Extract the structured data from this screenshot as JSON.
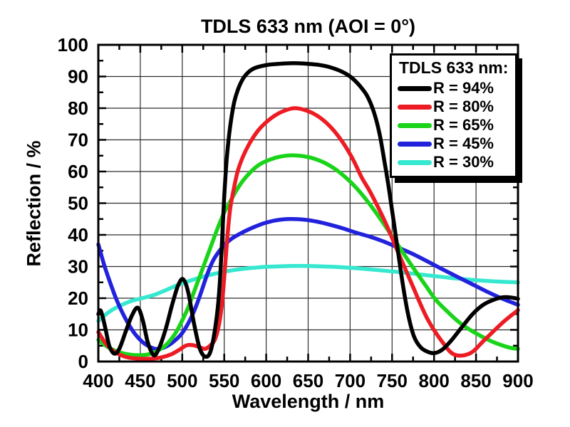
{
  "chart_data": {
    "type": "line",
    "title": "TDLS 633 nm (AOI = 0°)",
    "xlabel": "Wavelength / nm",
    "ylabel": "Reflection / %",
    "xlim": [
      400,
      900
    ],
    "ylim": [
      0,
      100
    ],
    "x_major_ticks": [
      400,
      450,
      500,
      550,
      600,
      650,
      700,
      750,
      800,
      850,
      900
    ],
    "x_minor_step": 25,
    "y_major_ticks": [
      0,
      10,
      20,
      30,
      40,
      50,
      60,
      70,
      80,
      90,
      100
    ],
    "y_minor_step": 5,
    "grid": "major-both-solid-thin",
    "frame_color": "#000000",
    "grid_color": "#2e2e2e",
    "legend": {
      "title": "TDLS 633 nm:",
      "position": "top-right"
    },
    "series": [
      {
        "key": "r30",
        "label": "R = 30%",
        "color": "#36E8CF",
        "legend_order": 5,
        "points": [
          [
            400,
            12.8
          ],
          [
            412,
            15.5
          ],
          [
            424,
            17.4
          ],
          [
            438,
            19.0
          ],
          [
            452,
            20.0
          ],
          [
            466,
            21.0
          ],
          [
            480,
            22.5
          ],
          [
            495,
            24.2
          ],
          [
            510,
            25.6
          ],
          [
            525,
            26.8
          ],
          [
            540,
            27.8
          ],
          [
            555,
            28.6
          ],
          [
            570,
            29.2
          ],
          [
            585,
            29.6
          ],
          [
            600,
            29.9
          ],
          [
            620,
            30.1
          ],
          [
            640,
            30.2
          ],
          [
            660,
            30.1
          ],
          [
            680,
            29.9
          ],
          [
            700,
            29.6
          ],
          [
            720,
            29.2
          ],
          [
            740,
            28.7
          ],
          [
            760,
            28.2
          ],
          [
            780,
            27.6
          ],
          [
            800,
            27.0
          ],
          [
            820,
            26.4
          ],
          [
            840,
            25.9
          ],
          [
            860,
            25.5
          ],
          [
            880,
            25.2
          ],
          [
            900,
            25.0
          ]
        ]
      },
      {
        "key": "r45",
        "label": "R = 45%",
        "color": "#2222DD",
        "legend_order": 4,
        "points": [
          [
            400,
            37.0
          ],
          [
            407,
            30.5
          ],
          [
            414,
            25.0
          ],
          [
            421,
            20.0
          ],
          [
            428,
            15.8
          ],
          [
            436,
            11.8
          ],
          [
            444,
            8.6
          ],
          [
            452,
            6.3
          ],
          [
            460,
            4.8
          ],
          [
            468,
            4.0
          ],
          [
            476,
            4.2
          ],
          [
            484,
            5.2
          ],
          [
            492,
            6.8
          ],
          [
            500,
            9.0
          ],
          [
            508,
            12.5
          ],
          [
            515,
            16.5
          ],
          [
            522,
            21.5
          ],
          [
            529,
            27.0
          ],
          [
            536,
            31.5
          ],
          [
            543,
            34.5
          ],
          [
            551,
            37.0
          ],
          [
            560,
            39.0
          ],
          [
            572,
            40.8
          ],
          [
            585,
            42.4
          ],
          [
            598,
            43.7
          ],
          [
            612,
            44.6
          ],
          [
            628,
            45.0
          ],
          [
            645,
            44.8
          ],
          [
            660,
            44.2
          ],
          [
            676,
            43.2
          ],
          [
            692,
            42.0
          ],
          [
            708,
            40.6
          ],
          [
            724,
            39.4
          ],
          [
            740,
            37.9
          ],
          [
            756,
            36.1
          ],
          [
            772,
            34.3
          ],
          [
            790,
            31.9
          ],
          [
            808,
            29.4
          ],
          [
            826,
            27.0
          ],
          [
            844,
            24.6
          ],
          [
            862,
            22.2
          ],
          [
            880,
            20.0
          ],
          [
            900,
            17.9
          ]
        ]
      },
      {
        "key": "r65",
        "label": "R = 65%",
        "color": "#1AD41A",
        "legend_order": 3,
        "points": [
          [
            400,
            6.8
          ],
          [
            410,
            4.8
          ],
          [
            422,
            3.2
          ],
          [
            435,
            2.3
          ],
          [
            448,
            2.0
          ],
          [
            460,
            2.3
          ],
          [
            472,
            3.6
          ],
          [
            482,
            5.6
          ],
          [
            492,
            9.0
          ],
          [
            500,
            13.0
          ],
          [
            507,
            17.0
          ],
          [
            514,
            22.0
          ],
          [
            521,
            27.0
          ],
          [
            528,
            32.0
          ],
          [
            535,
            37.0
          ],
          [
            542,
            42.0
          ],
          [
            549,
            46.5
          ],
          [
            556,
            50.0
          ],
          [
            564,
            53.8
          ],
          [
            572,
            57.0
          ],
          [
            582,
            60.0
          ],
          [
            592,
            62.2
          ],
          [
            603,
            63.6
          ],
          [
            615,
            64.6
          ],
          [
            630,
            65.1
          ],
          [
            645,
            64.8
          ],
          [
            658,
            64.0
          ],
          [
            670,
            62.7
          ],
          [
            682,
            60.8
          ],
          [
            694,
            58.3
          ],
          [
            706,
            55.2
          ],
          [
            718,
            51.5
          ],
          [
            730,
            47.3
          ],
          [
            742,
            42.7
          ],
          [
            754,
            38.0
          ],
          [
            766,
            33.2
          ],
          [
            778,
            28.5
          ],
          [
            790,
            24.0
          ],
          [
            802,
            19.5
          ],
          [
            815,
            16.0
          ],
          [
            828,
            12.8
          ],
          [
            840,
            10.5
          ],
          [
            852,
            8.6
          ],
          [
            865,
            6.8
          ],
          [
            878,
            5.4
          ],
          [
            890,
            4.4
          ],
          [
            900,
            4.0
          ]
        ]
      },
      {
        "key": "r80",
        "label": "R = 80%",
        "color": "#ED1C24",
        "legend_order": 2,
        "points": [
          [
            400,
            9.3
          ],
          [
            408,
            6.0
          ],
          [
            417,
            3.5
          ],
          [
            427,
            2.0
          ],
          [
            437,
            1.2
          ],
          [
            450,
            0.9
          ],
          [
            463,
            0.9
          ],
          [
            475,
            1.3
          ],
          [
            487,
            2.3
          ],
          [
            497,
            3.8
          ],
          [
            505,
            5.1
          ],
          [
            512,
            5.2
          ],
          [
            520,
            4.6
          ],
          [
            527,
            4.0
          ],
          [
            533,
            5.0
          ],
          [
            539,
            7.0
          ],
          [
            544,
            12.0
          ],
          [
            548,
            20.0
          ],
          [
            551,
            30.0
          ],
          [
            554,
            40.0
          ],
          [
            557,
            48.0
          ],
          [
            561,
            54.0
          ],
          [
            566,
            60.0
          ],
          [
            572,
            64.5
          ],
          [
            580,
            68.8
          ],
          [
            590,
            72.8
          ],
          [
            601,
            75.8
          ],
          [
            613,
            78.1
          ],
          [
            625,
            79.5
          ],
          [
            634,
            80.0
          ],
          [
            645,
            79.5
          ],
          [
            657,
            78.2
          ],
          [
            669,
            76.0
          ],
          [
            681,
            72.8
          ],
          [
            693,
            68.5
          ],
          [
            704,
            63.5
          ],
          [
            714,
            58.0
          ],
          [
            724,
            53.5
          ],
          [
            741,
            44.5
          ],
          [
            758,
            34.0
          ],
          [
            775,
            23.5
          ],
          [
            792,
            13.5
          ],
          [
            809,
            6.5
          ],
          [
            824,
            2.2
          ],
          [
            843,
            2.6
          ],
          [
            860,
            6.8
          ],
          [
            883,
            12.6
          ],
          [
            900,
            16.2
          ]
        ]
      },
      {
        "key": "r94",
        "label": "R = 94%",
        "color": "#000000",
        "legend_order": 1,
        "points": [
          [
            400,
            15.0
          ],
          [
            403,
            16.0
          ],
          [
            408,
            11.0
          ],
          [
            413,
            5.0
          ],
          [
            419,
            2.5
          ],
          [
            425,
            4.0
          ],
          [
            432,
            9.0
          ],
          [
            440,
            14.5
          ],
          [
            447,
            17.0
          ],
          [
            453,
            13.0
          ],
          [
            459,
            6.0
          ],
          [
            466,
            2.0
          ],
          [
            472,
            4.0
          ],
          [
            480,
            10.0
          ],
          [
            488,
            18.0
          ],
          [
            495,
            24.0
          ],
          [
            501,
            26.0
          ],
          [
            507,
            22.0
          ],
          [
            514,
            12.0
          ],
          [
            521,
            4.0
          ],
          [
            528,
            1.5
          ],
          [
            534,
            3.5
          ],
          [
            540,
            12.0
          ],
          [
            544,
            22.0
          ],
          [
            547,
            36.0
          ],
          [
            550,
            52.0
          ],
          [
            553,
            64.0
          ],
          [
            557,
            74.0
          ],
          [
            562,
            82.0
          ],
          [
            568,
            87.0
          ],
          [
            575,
            90.3
          ],
          [
            585,
            92.5
          ],
          [
            600,
            93.6
          ],
          [
            615,
            94.0
          ],
          [
            633,
            94.2
          ],
          [
            650,
            94.0
          ],
          [
            662,
            93.7
          ],
          [
            675,
            93.0
          ],
          [
            688,
            91.8
          ],
          [
            700,
            90.0
          ],
          [
            710,
            87.5
          ],
          [
            720,
            84.0
          ],
          [
            728,
            79.0
          ],
          [
            735,
            72.0
          ],
          [
            741,
            63.0
          ],
          [
            746,
            55.0
          ],
          [
            752,
            44.0
          ],
          [
            758,
            33.0
          ],
          [
            763,
            24.0
          ],
          [
            769,
            15.0
          ],
          [
            776,
            8.0
          ],
          [
            784,
            4.5
          ],
          [
            793,
            3.0
          ],
          [
            801,
            2.7
          ],
          [
            810,
            3.8
          ],
          [
            820,
            6.5
          ],
          [
            833,
            10.8
          ],
          [
            846,
            15.0
          ],
          [
            858,
            17.8
          ],
          [
            870,
            19.4
          ],
          [
            882,
            20.3
          ],
          [
            892,
            20.2
          ],
          [
            900,
            19.8
          ]
        ]
      }
    ]
  }
}
